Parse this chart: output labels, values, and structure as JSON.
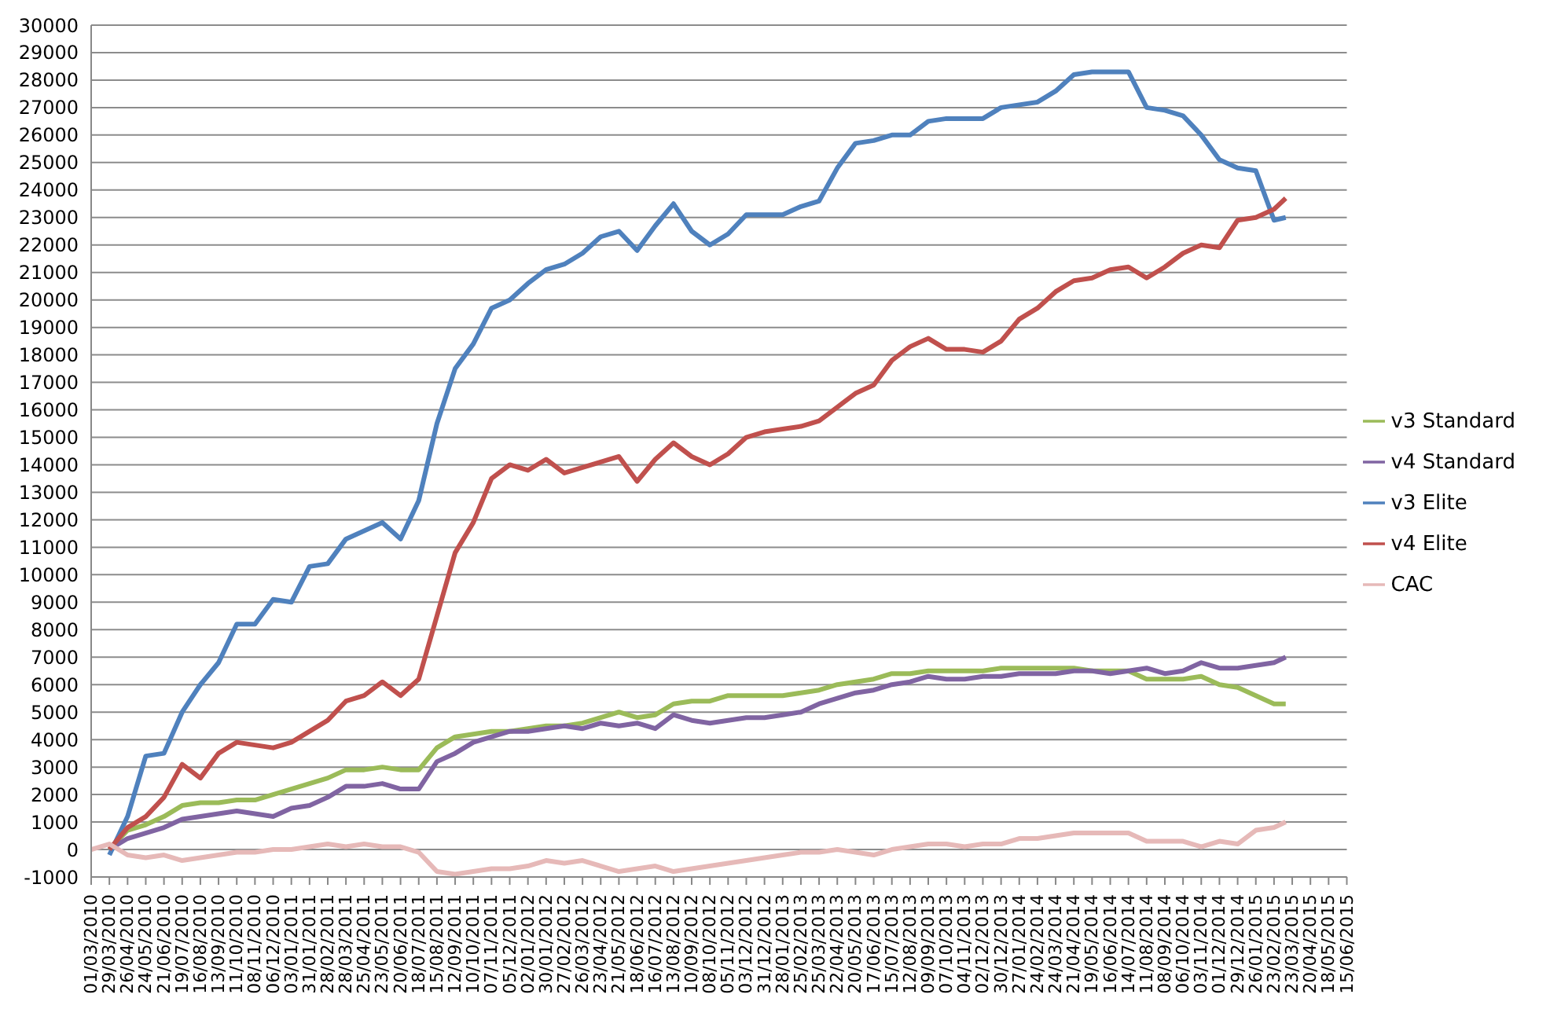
{
  "chart_data": {
    "type": "line",
    "x": [
      "2010-03-01",
      "2010-03-29",
      "2010-04-26",
      "2010-05-24",
      "2010-06-21",
      "2010-07-19",
      "2010-08-16",
      "2010-09-13",
      "2010-10-11",
      "2010-11-08",
      "2010-12-06",
      "2011-01-03",
      "2011-01-31",
      "2011-02-28",
      "2011-03-28",
      "2011-04-25",
      "2011-05-23",
      "2011-06-20",
      "2011-07-18",
      "2011-08-15",
      "2011-09-12",
      "2011-10-10",
      "2011-11-07",
      "2011-12-05",
      "2012-01-02",
      "2012-01-30",
      "2012-02-27",
      "2012-03-26",
      "2012-04-23",
      "2012-05-21",
      "2012-06-18",
      "2012-07-16",
      "2012-08-13",
      "2012-09-10",
      "2012-10-08",
      "2012-11-05",
      "2012-12-03",
      "2012-12-31",
      "2013-01-28",
      "2013-02-25",
      "2013-03-25",
      "2013-04-22",
      "2013-05-20",
      "2013-06-17",
      "2013-07-15",
      "2013-08-12",
      "2013-09-09",
      "2013-10-07",
      "2013-11-04",
      "2013-12-02",
      "2013-12-30",
      "2014-01-27",
      "2014-02-24",
      "2014-03-24",
      "2014-04-21",
      "2014-05-19",
      "2014-06-16",
      "2014-07-14",
      "2014-08-11",
      "2014-09-08",
      "2014-10-06",
      "2014-11-03",
      "2014-12-01",
      "2014-12-29",
      "2015-01-26",
      "2015-02-23",
      "2015-03-13"
    ],
    "series": [
      {
        "name": "v3 Standard",
        "color": "#9bbb59",
        "values": [
          null,
          0,
          700,
          900,
          1200,
          1600,
          1700,
          1700,
          1800,
          1800,
          2000,
          2200,
          2400,
          2600,
          2900,
          2900,
          3000,
          2900,
          2900,
          3700,
          4100,
          4200,
          4300,
          4300,
          4400,
          4500,
          4500,
          4600,
          4800,
          5000,
          4800,
          4900,
          5300,
          5400,
          5400,
          5600,
          5600,
          5600,
          5600,
          5700,
          5800,
          6000,
          6100,
          6200,
          6400,
          6400,
          6500,
          6500,
          6500,
          6500,
          6600,
          6600,
          6600,
          6600,
          6600,
          6500,
          6500,
          6500,
          6200,
          6200,
          6200,
          6300,
          6000,
          5900,
          5600,
          5300,
          5300
        ]
      },
      {
        "name": "v4 Standard",
        "color": "#8064a2",
        "values": [
          null,
          0,
          400,
          600,
          800,
          1100,
          1200,
          1300,
          1400,
          1300,
          1200,
          1500,
          1600,
          1900,
          2300,
          2300,
          2400,
          2200,
          2200,
          3200,
          3500,
          3900,
          4100,
          4300,
          4300,
          4400,
          4500,
          4400,
          4600,
          4500,
          4600,
          4400,
          4900,
          4700,
          4600,
          4700,
          4800,
          4800,
          4900,
          5000,
          5300,
          5500,
          5700,
          5800,
          6000,
          6100,
          6300,
          6200,
          6200,
          6300,
          6300,
          6400,
          6400,
          6400,
          6500,
          6500,
          6400,
          6500,
          6600,
          6400,
          6500,
          6800,
          6600,
          6600,
          6700,
          6800,
          7000
        ]
      },
      {
        "name": "v3 Elite",
        "color": "#4f81bd",
        "values": [
          null,
          -200,
          1200,
          3400,
          3500,
          5000,
          6000,
          6800,
          8200,
          8200,
          9100,
          9000,
          10300,
          10400,
          11300,
          11600,
          11900,
          11300,
          12700,
          15500,
          17500,
          18400,
          19700,
          20000,
          20600,
          21100,
          21300,
          21700,
          22300,
          22500,
          21800,
          22700,
          23500,
          22500,
          22000,
          22400,
          23100,
          23100,
          23100,
          23400,
          23600,
          24800,
          25700,
          25800,
          26000,
          26000,
          26500,
          26600,
          26600,
          26600,
          27000,
          27100,
          27200,
          27600,
          28200,
          28300,
          28300,
          28300,
          27000,
          26900,
          26700,
          26000,
          25100,
          24800,
          24700,
          22900,
          23000
        ]
      },
      {
        "name": "v4 Elite",
        "color": "#c0504d",
        "values": [
          null,
          0,
          800,
          1200,
          1900,
          3100,
          2600,
          3500,
          3900,
          3800,
          3700,
          3900,
          4300,
          4700,
          5400,
          5600,
          6100,
          5600,
          6200,
          8500,
          10800,
          11900,
          13500,
          14000,
          13800,
          14200,
          13700,
          13900,
          14100,
          14300,
          13400,
          14200,
          14800,
          14300,
          14000,
          14400,
          15000,
          15200,
          15300,
          15400,
          15600,
          16100,
          16600,
          16900,
          17800,
          18300,
          18600,
          18200,
          18200,
          18100,
          18500,
          19300,
          19700,
          20300,
          20700,
          20800,
          21100,
          21200,
          20800,
          21200,
          21700,
          22000,
          21900,
          22900,
          23000,
          23300,
          23700
        ]
      },
      {
        "name": "CAC",
        "color": "#e6b9b8",
        "values": [
          0,
          200,
          -200,
          -300,
          -200,
          -400,
          -300,
          -200,
          -100,
          -100,
          0,
          0,
          100,
          200,
          100,
          200,
          100,
          100,
          -100,
          -800,
          -900,
          -800,
          -700,
          -700,
          -600,
          -400,
          -500,
          -400,
          -600,
          -800,
          -700,
          -600,
          -800,
          -700,
          -600,
          -500,
          -400,
          -300,
          -200,
          -100,
          -100,
          0,
          -100,
          -200,
          0,
          100,
          200,
          200,
          100,
          200,
          200,
          400,
          400,
          500,
          600,
          600,
          600,
          600,
          300,
          300,
          300,
          100,
          300,
          200,
          700,
          800,
          1000
        ]
      }
    ],
    "xlim": [
      "2010-03-01",
      "2015-06-15"
    ],
    "xticks": [
      {
        "value": "2010-03-01",
        "label": "01/03/2010"
      },
      {
        "value": "2010-03-29",
        "label": "29/03/2010"
      },
      {
        "value": "2010-04-26",
        "label": "26/04/2010"
      },
      {
        "value": "2010-05-24",
        "label": "24/05/2010"
      },
      {
        "value": "2010-06-21",
        "label": "21/06/2010"
      },
      {
        "value": "2010-07-19",
        "label": "19/07/2010"
      },
      {
        "value": "2010-08-16",
        "label": "16/08/2010"
      },
      {
        "value": "2010-09-13",
        "label": "13/09/2010"
      },
      {
        "value": "2010-10-11",
        "label": "11/10/2010"
      },
      {
        "value": "2010-11-08",
        "label": "08/11/2010"
      },
      {
        "value": "2010-12-06",
        "label": "06/12/2010"
      },
      {
        "value": "2011-01-03",
        "label": "03/01/2011"
      },
      {
        "value": "2011-01-31",
        "label": "31/01/2011"
      },
      {
        "value": "2011-02-28",
        "label": "28/02/2011"
      },
      {
        "value": "2011-03-28",
        "label": "28/03/2011"
      },
      {
        "value": "2011-04-25",
        "label": "25/04/2011"
      },
      {
        "value": "2011-05-23",
        "label": "23/05/2011"
      },
      {
        "value": "2011-06-20",
        "label": "20/06/2011"
      },
      {
        "value": "2011-07-18",
        "label": "18/07/2011"
      },
      {
        "value": "2011-08-15",
        "label": "15/08/2011"
      },
      {
        "value": "2011-09-12",
        "label": "12/09/2011"
      },
      {
        "value": "2011-10-10",
        "label": "10/10/2011"
      },
      {
        "value": "2011-11-07",
        "label": "07/11/2011"
      },
      {
        "value": "2011-12-05",
        "label": "05/12/2011"
      },
      {
        "value": "2012-01-02",
        "label": "02/01/2012"
      },
      {
        "value": "2012-01-30",
        "label": "30/01/2012"
      },
      {
        "value": "2012-02-27",
        "label": "27/02/2012"
      },
      {
        "value": "2012-03-26",
        "label": "26/03/2012"
      },
      {
        "value": "2012-04-23",
        "label": "23/04/2012"
      },
      {
        "value": "2012-05-21",
        "label": "21/05/2012"
      },
      {
        "value": "2012-06-18",
        "label": "18/06/2012"
      },
      {
        "value": "2012-07-16",
        "label": "16/07/2012"
      },
      {
        "value": "2012-08-13",
        "label": "13/08/2012"
      },
      {
        "value": "2012-09-10",
        "label": "10/09/2012"
      },
      {
        "value": "2012-10-08",
        "label": "08/10/2012"
      },
      {
        "value": "2012-11-05",
        "label": "05/11/2012"
      },
      {
        "value": "2012-12-03",
        "label": "03/12/2012"
      },
      {
        "value": "2012-12-31",
        "label": "31/12/2012"
      },
      {
        "value": "2013-01-28",
        "label": "28/01/2013"
      },
      {
        "value": "2013-02-25",
        "label": "25/02/2013"
      },
      {
        "value": "2013-03-25",
        "label": "25/03/2013"
      },
      {
        "value": "2013-04-22",
        "label": "22/04/2013"
      },
      {
        "value": "2013-05-20",
        "label": "20/05/2013"
      },
      {
        "value": "2013-06-17",
        "label": "17/06/2013"
      },
      {
        "value": "2013-07-15",
        "label": "15/07/2013"
      },
      {
        "value": "2013-08-12",
        "label": "12/08/2013"
      },
      {
        "value": "2013-09-09",
        "label": "09/09/2013"
      },
      {
        "value": "2013-10-07",
        "label": "07/10/2013"
      },
      {
        "value": "2013-11-04",
        "label": "04/11/2013"
      },
      {
        "value": "2013-12-02",
        "label": "02/12/2013"
      },
      {
        "value": "2013-12-30",
        "label": "30/12/2013"
      },
      {
        "value": "2014-01-27",
        "label": "27/01/2014"
      },
      {
        "value": "2014-02-24",
        "label": "24/02/2014"
      },
      {
        "value": "2014-03-24",
        "label": "24/03/2014"
      },
      {
        "value": "2014-04-21",
        "label": "21/04/2014"
      },
      {
        "value": "2014-05-19",
        "label": "19/05/2014"
      },
      {
        "value": "2014-06-16",
        "label": "16/06/2014"
      },
      {
        "value": "2014-07-14",
        "label": "14/07/2014"
      },
      {
        "value": "2014-08-11",
        "label": "11/08/2014"
      },
      {
        "value": "2014-09-08",
        "label": "08/09/2014"
      },
      {
        "value": "2014-10-06",
        "label": "06/10/2014"
      },
      {
        "value": "2014-11-03",
        "label": "03/11/2014"
      },
      {
        "value": "2014-12-01",
        "label": "01/12/2014"
      },
      {
        "value": "2014-12-29",
        "label": "29/12/2014"
      },
      {
        "value": "2015-01-26",
        "label": "26/01/2015"
      },
      {
        "value": "2015-02-23",
        "label": "23/02/2015"
      },
      {
        "value": "2015-03-23",
        "label": "23/03/2015"
      },
      {
        "value": "2015-04-20",
        "label": "20/04/2015"
      },
      {
        "value": "2015-05-18",
        "label": "18/05/2015"
      },
      {
        "value": "2015-06-15",
        "label": "15/06/2015"
      }
    ],
    "ylim": [
      -1000,
      30000
    ],
    "yticks": [
      -1000,
      0,
      1000,
      2000,
      3000,
      4000,
      5000,
      6000,
      7000,
      8000,
      9000,
      10000,
      11000,
      12000,
      13000,
      14000,
      15000,
      16000,
      17000,
      18000,
      19000,
      20000,
      21000,
      22000,
      23000,
      24000,
      25000,
      26000,
      27000,
      28000,
      29000,
      30000
    ],
    "grid": "y",
    "legend": "right",
    "marker": "none",
    "line_style": "solid"
  }
}
